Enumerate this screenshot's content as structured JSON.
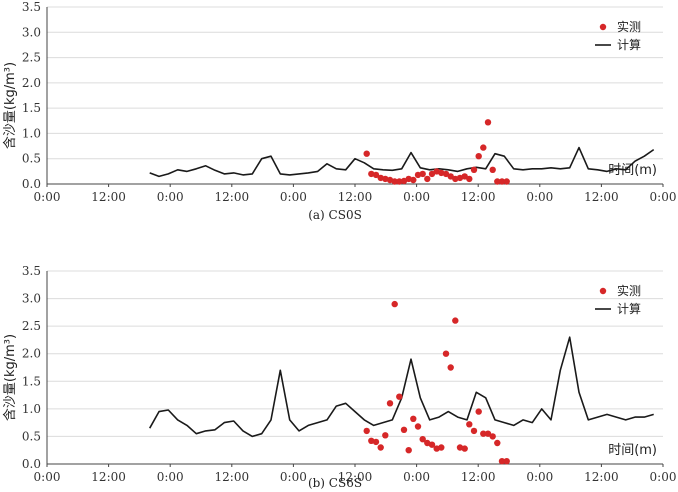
{
  "colors": {
    "observed": "#d62728",
    "computed": "#1a1a1a",
    "grid": "#dcdcdc",
    "axis": "#444444"
  },
  "chart_data": [
    {
      "type": "line",
      "caption": "(a) CS0S",
      "ylabel": "含沙量(kg/m³)",
      "xlabel": "时间(m)",
      "ylim": [
        0,
        3.5
      ],
      "yticks": [
        "0.0",
        "0.5",
        "1.0",
        "1.5",
        "2.0",
        "2.5",
        "3.0",
        "3.5"
      ],
      "xlim": [
        0,
        132
      ],
      "xticks": [
        "0:00",
        "12:00",
        "0:00",
        "12:00",
        "0:00",
        "12:00",
        "0:00",
        "12:00",
        "0:00",
        "12:00",
        "0:00"
      ],
      "grid": "horizontal",
      "legend": {
        "position": "top-right",
        "observed": "实测",
        "computed": "计算"
      },
      "series": [
        {
          "kind": "line",
          "x": [
            22,
            24,
            26,
            28,
            30,
            32,
            34,
            36,
            38,
            40,
            42,
            44,
            46,
            48,
            50,
            52,
            54,
            56,
            58,
            60,
            62,
            64,
            66,
            68,
            70,
            72,
            74,
            76,
            78,
            80,
            82,
            84,
            86,
            88,
            90,
            92,
            94,
            96,
            98,
            100,
            102,
            104,
            106,
            108,
            110,
            112,
            114,
            116,
            118,
            120,
            122,
            124,
            126,
            128,
            130
          ],
          "values": [
            0.22,
            0.15,
            0.2,
            0.28,
            0.25,
            0.3,
            0.36,
            0.27,
            0.2,
            0.22,
            0.18,
            0.2,
            0.5,
            0.55,
            0.2,
            0.18,
            0.2,
            0.22,
            0.25,
            0.4,
            0.3,
            0.28,
            0.5,
            0.42,
            0.3,
            0.28,
            0.27,
            0.3,
            0.62,
            0.32,
            0.28,
            0.3,
            0.28,
            0.25,
            0.3,
            0.33,
            0.3,
            0.6,
            0.55,
            0.3,
            0.28,
            0.3,
            0.3,
            0.32,
            0.3,
            0.32,
            0.72,
            0.3,
            0.28,
            0.25,
            0.3,
            0.28,
            0.45,
            0.55,
            0.68
          ]
        },
        {
          "kind": "scatter",
          "x": [
            68.5,
            69.5,
            70.5,
            71.5,
            72.5,
            73.5,
            74.5,
            75.5,
            76.5,
            77.5,
            78.5,
            79.5,
            80.5,
            81.5,
            82.5,
            83.5,
            84.5,
            85.5,
            86.5,
            87.5,
            88.5,
            89.5,
            90.5,
            91.5,
            92.5,
            93.5,
            94.5,
            95.5,
            96.5,
            97.5,
            98.5
          ],
          "values": [
            0.6,
            0.2,
            0.18,
            0.12,
            0.1,
            0.08,
            0.05,
            0.05,
            0.06,
            0.1,
            0.08,
            0.18,
            0.2,
            0.1,
            0.2,
            0.25,
            0.22,
            0.2,
            0.15,
            0.1,
            0.12,
            0.15,
            0.1,
            0.28,
            0.55,
            0.72,
            1.22,
            0.28,
            0.05,
            0.05,
            0.05
          ]
        }
      ]
    },
    {
      "type": "line",
      "caption": "(b) CS6S",
      "ylabel": "含沙量(kg/m³)",
      "xlabel": "时间(m)",
      "ylim": [
        0,
        3.5
      ],
      "yticks": [
        "0.0",
        "0.5",
        "1.0",
        "1.5",
        "2.0",
        "2.5",
        "3.0",
        "3.5"
      ],
      "xlim": [
        0,
        132
      ],
      "xticks": [
        "0:00",
        "12:00",
        "0:00",
        "12:00",
        "0:00",
        "12:00",
        "0:00",
        "12:00",
        "0:00",
        "12:00",
        "0:00"
      ],
      "grid": "horizontal",
      "legend": {
        "position": "top-right",
        "observed": "实测",
        "computed": "计算"
      },
      "series": [
        {
          "kind": "line",
          "x": [
            22,
            24,
            26,
            28,
            30,
            32,
            34,
            36,
            38,
            40,
            42,
            44,
            46,
            48,
            50,
            52,
            54,
            56,
            58,
            60,
            62,
            64,
            66,
            68,
            70,
            72,
            74,
            76,
            78,
            80,
            82,
            84,
            86,
            88,
            90,
            92,
            94,
            96,
            98,
            100,
            102,
            104,
            106,
            108,
            110,
            112,
            114,
            116,
            118,
            120,
            122,
            124,
            126,
            128,
            130
          ],
          "values": [
            0.65,
            0.95,
            0.98,
            0.8,
            0.7,
            0.55,
            0.6,
            0.62,
            0.75,
            0.78,
            0.6,
            0.5,
            0.55,
            0.8,
            1.7,
            0.8,
            0.6,
            0.7,
            0.75,
            0.8,
            1.05,
            1.1,
            0.95,
            0.8,
            0.7,
            0.75,
            0.8,
            1.2,
            1.9,
            1.2,
            0.8,
            0.85,
            0.95,
            0.85,
            0.8,
            1.3,
            1.2,
            0.8,
            0.75,
            0.7,
            0.8,
            0.75,
            1.0,
            0.8,
            1.7,
            2.3,
            1.3,
            0.8,
            0.85,
            0.9,
            0.85,
            0.8,
            0.85,
            0.85,
            0.9
          ]
        },
        {
          "kind": "scatter",
          "x": [
            68.5,
            69.5,
            70.5,
            71.5,
            72.5,
            73.5,
            74.5,
            75.5,
            76.5,
            77.5,
            78.5,
            79.5,
            80.5,
            81.5,
            82.5,
            83.5,
            84.5,
            85.5,
            86.5,
            87.5,
            88.5,
            89.5,
            90.5,
            91.5,
            92.5,
            93.5,
            94.5,
            95.5,
            96.5,
            97.5,
            98.5
          ],
          "values": [
            0.6,
            0.42,
            0.4,
            0.3,
            0.52,
            1.1,
            2.9,
            1.22,
            0.62,
            0.25,
            0.82,
            0.68,
            0.45,
            0.38,
            0.35,
            0.28,
            0.3,
            2.0,
            1.75,
            2.6,
            0.3,
            0.28,
            0.72,
            0.6,
            0.95,
            0.55,
            0.55,
            0.5,
            0.38,
            0.05,
            0.05
          ]
        }
      ]
    }
  ]
}
